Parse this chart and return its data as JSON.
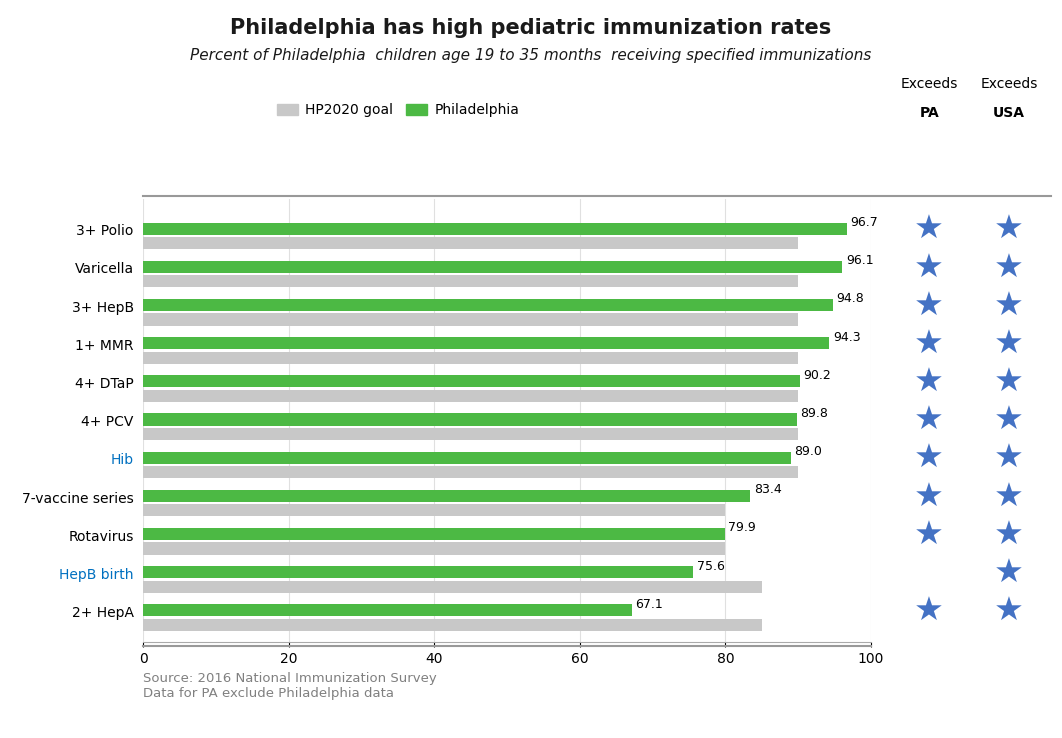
{
  "title": "Philadelphia has high pediatric immunization rates",
  "subtitle": "Percent of Philadelphia  children age 19 to 35 months  receiving specified immunizations",
  "categories": [
    "3+ Polio",
    "Varicella",
    "3+ HepB",
    "1+ MMR",
    "4+ DTaP",
    "4+ PCV",
    "Hib",
    "7-vaccine series",
    "Rotavirus",
    "HepB birth",
    "2+ HepA"
  ],
  "philadelphia_values": [
    96.7,
    96.1,
    94.8,
    94.3,
    90.2,
    89.8,
    89.0,
    83.4,
    79.9,
    75.6,
    67.1
  ],
  "hp2020_values": [
    90,
    90,
    90,
    90,
    90,
    90,
    90,
    80,
    80,
    85,
    85
  ],
  "green_color": "#4cb944",
  "gray_color": "#c8c8c8",
  "star_color": "#4472c4",
  "exceeds_pa": [
    true,
    true,
    true,
    true,
    true,
    true,
    true,
    true,
    true,
    false,
    true
  ],
  "exceeds_usa": [
    true,
    true,
    true,
    true,
    true,
    true,
    true,
    true,
    true,
    true,
    true
  ],
  "source_text": "Source: 2016 National Immunization Survey\nData for PA exclude Philadelphia data",
  "legend_hp2020": "HP2020 goal",
  "legend_philly": "Philadelphia",
  "background_color": "#ffffff",
  "title_color": "#1a1a1a",
  "subtitle_color": "#1a1a1a",
  "label_color_blue": "#0070c0",
  "blue_labels": [
    "Hib",
    "HepB birth"
  ],
  "source_color": "#808080"
}
